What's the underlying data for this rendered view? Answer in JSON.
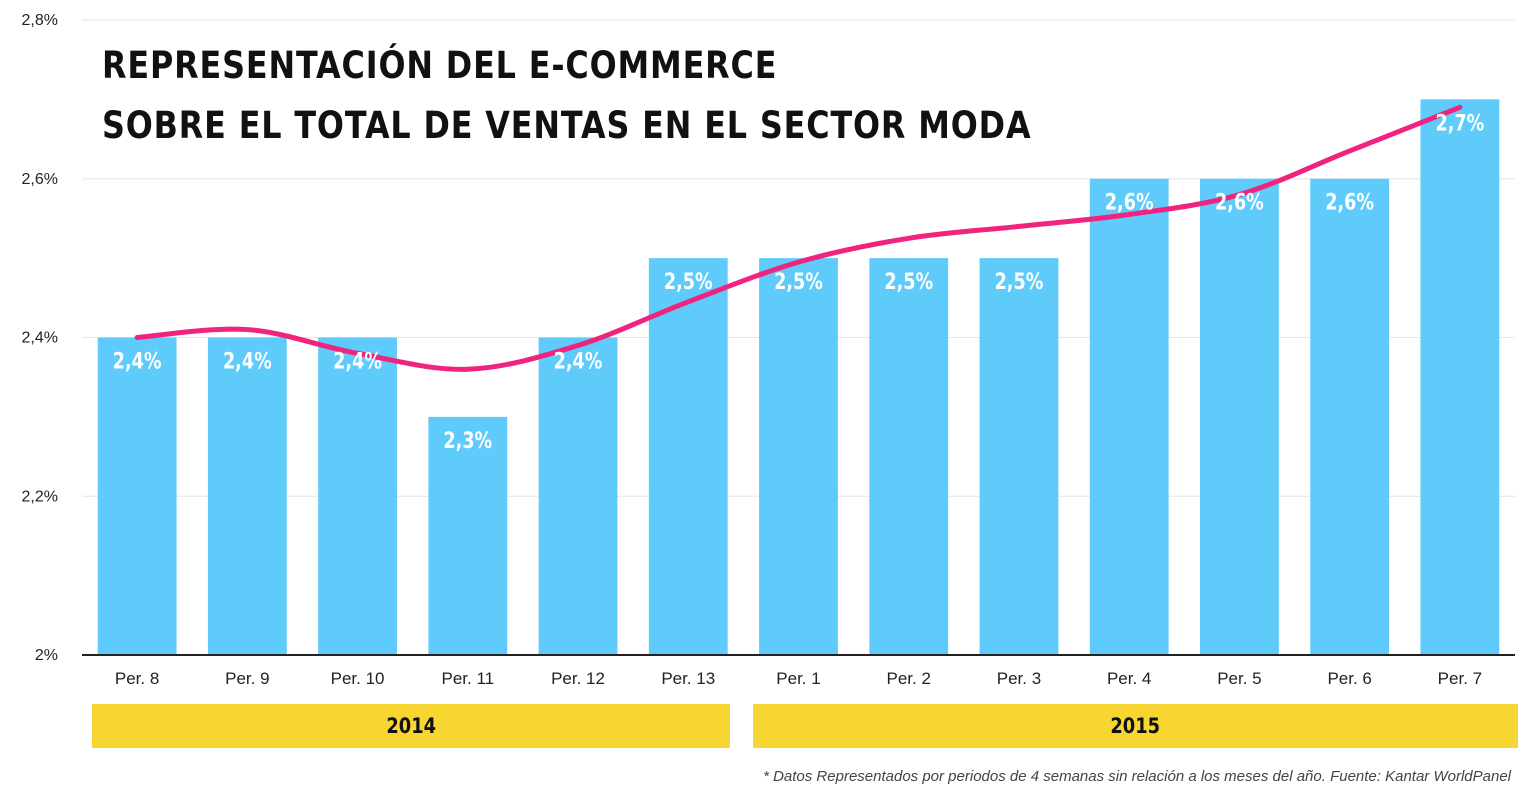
{
  "title_lines": [
    "REPRESENTACIÓN DEL E-COMMERCE",
    "SOBRE EL TOTAL DE VENTAS EN EL SECTOR MODA"
  ],
  "chart_data": {
    "type": "bar",
    "title": "REPRESENTACIÓN DEL E-COMMERCE SOBRE EL TOTAL DE VENTAS EN EL SECTOR MODA",
    "categories": [
      "Per. 8",
      "Per. 9",
      "Per. 10",
      "Per. 11",
      "Per. 12",
      "Per. 13",
      "Per. 1",
      "Per. 2",
      "Per. 3",
      "Per. 4",
      "Per. 5",
      "Per. 6",
      "Per. 7"
    ],
    "values": [
      2.4,
      2.4,
      2.4,
      2.3,
      2.4,
      2.5,
      2.5,
      2.5,
      2.5,
      2.6,
      2.6,
      2.6,
      2.7
    ],
    "data_labels": [
      "2,4%",
      "2,4%",
      "2,4%",
      "2,3%",
      "2,4%",
      "2,5%",
      "2,5%",
      "2,5%",
      "2,5%",
      "2,6%",
      "2,6%",
      "2,6%",
      "2,7%"
    ],
    "trend_values": [
      2.4,
      2.41,
      2.38,
      2.36,
      2.39,
      2.445,
      2.495,
      2.525,
      2.54,
      2.555,
      2.58,
      2.635,
      2.69
    ],
    "ylim": [
      2.0,
      2.8
    ],
    "yticks": [
      2.0,
      2.2,
      2.4,
      2.6,
      2.8
    ],
    "ytick_labels": [
      "2%",
      "2,2%",
      "2,4%",
      "2,6%",
      "2,8%"
    ],
    "xlabel": "",
    "ylabel": "",
    "grid": true,
    "groups": [
      {
        "label": "2014",
        "from": 0,
        "to": 5
      },
      {
        "label": "2015",
        "from": 6,
        "to": 12
      }
    ],
    "colors": {
      "bar": "#5ecbfb",
      "trend": "#f0247f",
      "group_band": "#f7d631",
      "grid": "#e6e6e6",
      "axis": "#222222"
    }
  },
  "footnote": "* Datos Representados por periodos de 4 semanas sin relación a los meses del año. Fuente: Kantar WorldPanel"
}
